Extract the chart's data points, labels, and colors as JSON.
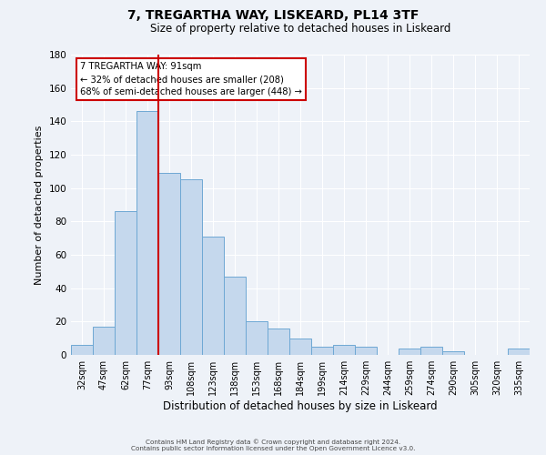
{
  "title": "7, TREGARTHA WAY, LISKEARD, PL14 3TF",
  "subtitle": "Size of property relative to detached houses in Liskeard",
  "xlabel": "Distribution of detached houses by size in Liskeard",
  "ylabel": "Number of detached properties",
  "bar_labels": [
    "32sqm",
    "47sqm",
    "62sqm",
    "77sqm",
    "93sqm",
    "108sqm",
    "123sqm",
    "138sqm",
    "153sqm",
    "168sqm",
    "184sqm",
    "199sqm",
    "214sqm",
    "229sqm",
    "244sqm",
    "259sqm",
    "274sqm",
    "290sqm",
    "305sqm",
    "320sqm",
    "335sqm"
  ],
  "bar_values": [
    6,
    17,
    86,
    146,
    109,
    105,
    71,
    47,
    20,
    16,
    10,
    5,
    6,
    5,
    0,
    4,
    5,
    2,
    0,
    0,
    4
  ],
  "bar_color": "#c5d8ed",
  "bar_edge_color": "#6ea8d4",
  "ylim": [
    0,
    180
  ],
  "yticks": [
    0,
    20,
    40,
    60,
    80,
    100,
    120,
    140,
    160,
    180
  ],
  "vline_index": 3.5,
  "vline_color": "#cc0000",
  "annotation_title": "7 TREGARTHA WAY: 91sqm",
  "annotation_line1": "← 32% of detached houses are smaller (208)",
  "annotation_line2": "68% of semi-detached houses are larger (448) →",
  "footer_line1": "Contains HM Land Registry data © Crown copyright and database right 2024.",
  "footer_line2": "Contains public sector information licensed under the Open Government Licence v3.0.",
  "bg_color": "#eef2f8",
  "grid_color": "#ffffff",
  "title_fontsize": 10,
  "subtitle_fontsize": 8.5,
  "axis_label_fontsize": 8.5,
  "tick_fontsize": 7,
  "ylabel_fontsize": 8
}
